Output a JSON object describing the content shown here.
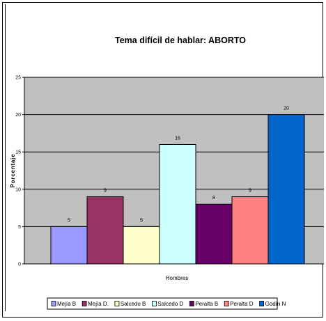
{
  "chart_data": {
    "type": "bar",
    "title": "Tema difícil de hablar: ABORTO",
    "xlabel": "Hombres",
    "ylabel": "Porcentaje",
    "ylim": [
      0,
      25
    ],
    "yticks": [
      0,
      5,
      10,
      15,
      20,
      25
    ],
    "grid": true,
    "legend_position": "bottom",
    "series": [
      {
        "name": "Mejía B",
        "value": 5,
        "color": "#9999FF"
      },
      {
        "name": "Mejía D.",
        "value": 9,
        "color": "#993366"
      },
      {
        "name": "Salcedo B",
        "value": 5,
        "color": "#FFFFCC"
      },
      {
        "name": "Salcedo D",
        "value": 16,
        "color": "#CCFFFF"
      },
      {
        "name": "Peralta B",
        "value": 8,
        "color": "#660066"
      },
      {
        "name": "Peralta D",
        "value": 9,
        "color": "#FF8080"
      },
      {
        "name": "Godín N",
        "value": 20,
        "color": "#0066CC"
      }
    ],
    "plot_background": "#C0C0C0"
  }
}
